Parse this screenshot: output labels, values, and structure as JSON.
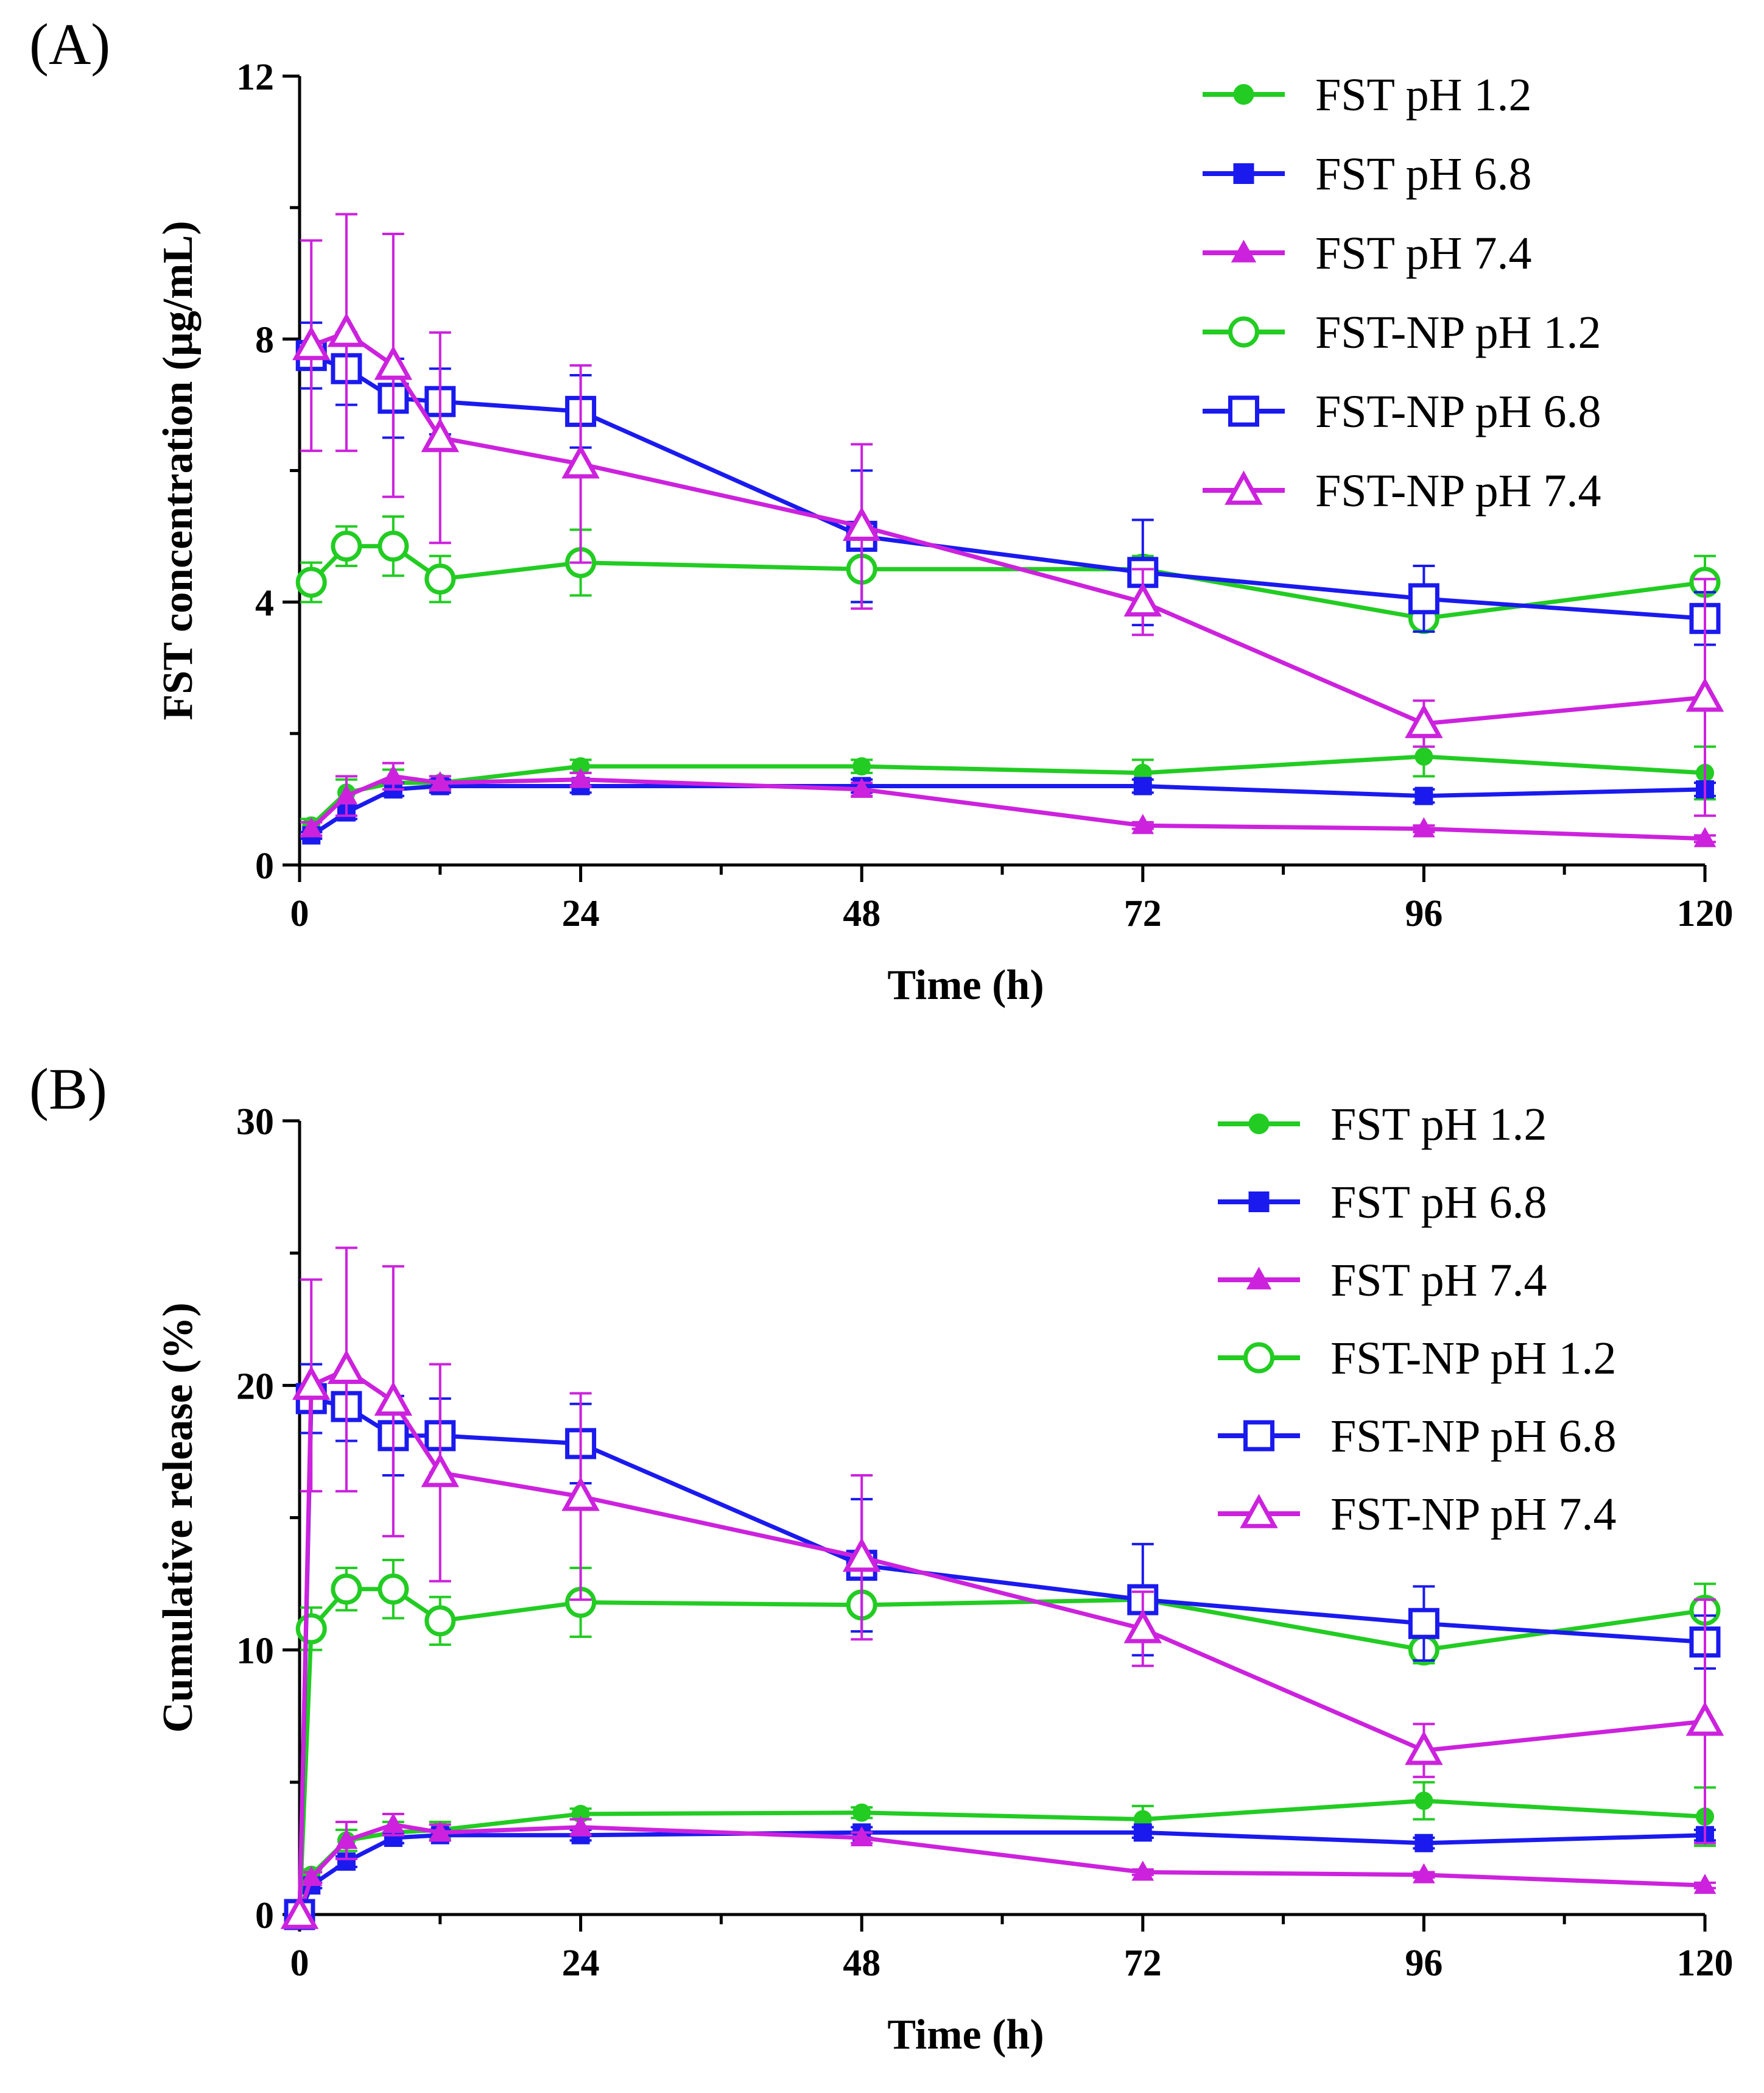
{
  "chart_data": [
    {
      "type": "line",
      "panel_label": "(A)",
      "xlabel": "Time (h)",
      "ylabel": "FST concentration (μg/mL)",
      "xlim": [
        0,
        120
      ],
      "ylim": [
        0,
        12
      ],
      "xticks": [
        0,
        24,
        48,
        72,
        96,
        120
      ],
      "yticks": [
        0,
        4,
        8,
        12
      ],
      "legend_position": "top-right",
      "series": [
        {
          "name": "FST pH 1.2",
          "color": "#22cc22",
          "marker": "circle",
          "filled": true,
          "x": [
            1,
            4,
            8,
            12,
            24,
            48,
            72,
            96,
            120
          ],
          "y": [
            0.6,
            1.1,
            1.25,
            1.25,
            1.5,
            1.5,
            1.4,
            1.65,
            1.4
          ],
          "err": [
            0.1,
            0.2,
            0.2,
            0.1,
            0.1,
            0.1,
            0.2,
            0.3,
            0.4
          ]
        },
        {
          "name": "FST pH 6.8",
          "color": "#1a1aee",
          "marker": "square",
          "filled": true,
          "x": [
            1,
            4,
            8,
            12,
            24,
            48,
            72,
            96,
            120
          ],
          "y": [
            0.45,
            0.8,
            1.15,
            1.2,
            1.2,
            1.2,
            1.2,
            1.05,
            1.15
          ],
          "err": [
            0.05,
            0.1,
            0.1,
            0.1,
            0.1,
            0.1,
            0.1,
            0.1,
            0.1
          ]
        },
        {
          "name": "FST pH 7.4",
          "color": "#cc22dd",
          "marker": "triangle",
          "filled": true,
          "x": [
            1,
            4,
            8,
            12,
            24,
            48,
            72,
            96,
            120
          ],
          "y": [
            0.55,
            1.05,
            1.35,
            1.25,
            1.3,
            1.15,
            0.6,
            0.55,
            0.4
          ],
          "err": [
            0.1,
            0.3,
            0.2,
            0.1,
            0.1,
            0.1,
            0.05,
            0.05,
            0.05
          ]
        },
        {
          "name": "FST-NP pH 1.2",
          "color": "#22cc22",
          "marker": "circle",
          "filled": false,
          "x": [
            1,
            4,
            8,
            12,
            24,
            48,
            72,
            96,
            120
          ],
          "y": [
            4.3,
            4.85,
            4.85,
            4.35,
            4.6,
            4.5,
            4.5,
            3.75,
            4.3
          ],
          "err": [
            0.3,
            0.3,
            0.45,
            0.35,
            0.5,
            0.5,
            0.2,
            0.2,
            0.4
          ]
        },
        {
          "name": "FST-NP pH 6.8",
          "color": "#1a1aee",
          "marker": "square",
          "filled": false,
          "x": [
            1,
            4,
            8,
            12,
            24,
            48,
            72,
            96,
            120
          ],
          "y": [
            7.75,
            7.55,
            7.1,
            7.05,
            6.9,
            5.0,
            4.45,
            4.05,
            3.75
          ],
          "err": [
            0.5,
            0.55,
            0.6,
            0.5,
            0.55,
            1.0,
            0.8,
            0.5,
            0.4
          ]
        },
        {
          "name": "FST-NP pH 7.4",
          "color": "#cc22dd",
          "marker": "triangle",
          "filled": false,
          "x": [
            1,
            4,
            8,
            12,
            24,
            48,
            72,
            96,
            120
          ],
          "y": [
            7.9,
            8.1,
            7.6,
            6.5,
            6.1,
            5.15,
            4.0,
            2.15,
            2.55
          ],
          "err": [
            1.6,
            1.8,
            2.0,
            1.6,
            1.5,
            1.25,
            0.5,
            0.35,
            1.8
          ]
        }
      ]
    },
    {
      "type": "line",
      "panel_label": "(B)",
      "xlabel": "Time (h)",
      "ylabel": "Cumulative release (%)",
      "xlim": [
        0,
        120
      ],
      "ylim": [
        0,
        30
      ],
      "xticks": [
        0,
        24,
        48,
        72,
        96,
        120
      ],
      "yticks": [
        0,
        10,
        20,
        30
      ],
      "legend_position": "top-right",
      "series": [
        {
          "name": "FST pH 1.2",
          "color": "#22cc22",
          "marker": "circle",
          "filled": true,
          "x": [
            0,
            1,
            4,
            8,
            12,
            24,
            48,
            72,
            96,
            120
          ],
          "y": [
            0,
            1.5,
            2.8,
            3.1,
            3.2,
            3.8,
            3.85,
            3.6,
            4.3,
            3.7
          ],
          "err": [
            0,
            0.2,
            0.4,
            0.4,
            0.3,
            0.2,
            0.2,
            0.5,
            0.7,
            1.1
          ]
        },
        {
          "name": "FST pH 6.8",
          "color": "#1a1aee",
          "marker": "square",
          "filled": true,
          "x": [
            0,
            1,
            4,
            8,
            12,
            24,
            48,
            72,
            96,
            120
          ],
          "y": [
            0,
            1.1,
            2.0,
            2.9,
            3.0,
            3.0,
            3.1,
            3.1,
            2.7,
            3.0
          ],
          "err": [
            0,
            0.1,
            0.2,
            0.2,
            0.2,
            0.2,
            0.2,
            0.2,
            0.2,
            0.2
          ]
        },
        {
          "name": "FST pH 7.4",
          "color": "#cc22dd",
          "marker": "triangle",
          "filled": true,
          "x": [
            0,
            1,
            4,
            8,
            12,
            24,
            48,
            72,
            96,
            120
          ],
          "y": [
            0,
            1.4,
            2.8,
            3.4,
            3.1,
            3.3,
            2.9,
            1.6,
            1.5,
            1.1
          ],
          "err": [
            0,
            0.2,
            0.7,
            0.4,
            0.3,
            0.3,
            0.2,
            0.1,
            0.1,
            0.1
          ]
        },
        {
          "name": "FST-NP pH 1.2",
          "color": "#22cc22",
          "marker": "circle",
          "filled": false,
          "x": [
            0,
            1,
            4,
            8,
            12,
            24,
            48,
            72,
            96,
            120
          ],
          "y": [
            0,
            10.8,
            12.3,
            12.3,
            11.1,
            11.8,
            11.7,
            11.9,
            10.0,
            11.5
          ],
          "err": [
            0,
            0.8,
            0.8,
            1.1,
            0.9,
            1.3,
            1.0,
            0.5,
            0.5,
            1.0
          ]
        },
        {
          "name": "FST-NP pH 6.8",
          "color": "#1a1aee",
          "marker": "square",
          "filled": false,
          "x": [
            0,
            1,
            4,
            8,
            12,
            24,
            48,
            72,
            96,
            120
          ],
          "y": [
            0,
            19.5,
            19.2,
            18.1,
            18.1,
            17.8,
            13.2,
            11.9,
            11.0,
            10.3
          ],
          "err": [
            0,
            1.3,
            1.3,
            1.5,
            1.4,
            1.5,
            2.5,
            2.1,
            1.4,
            1.0
          ]
        },
        {
          "name": "FST-NP pH 7.4",
          "color": "#cc22dd",
          "marker": "triangle",
          "filled": false,
          "x": [
            0,
            1,
            4,
            8,
            12,
            24,
            48,
            72,
            96,
            120
          ],
          "y": [
            0,
            20.0,
            20.6,
            19.4,
            16.7,
            15.8,
            13.5,
            10.8,
            6.2,
            7.3
          ],
          "err": [
            0,
            4.0,
            4.6,
            5.1,
            4.1,
            3.9,
            3.1,
            1.4,
            1.0,
            4.6
          ]
        }
      ]
    }
  ]
}
